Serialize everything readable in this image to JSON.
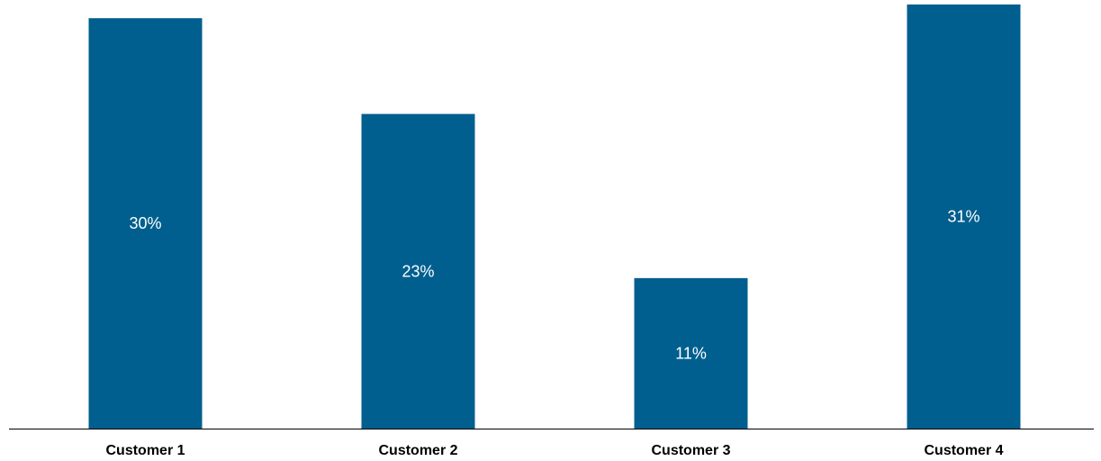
{
  "chart_data": {
    "type": "bar",
    "categories": [
      "Customer 1",
      "Customer 2",
      "Customer 3",
      "Customer 4"
    ],
    "values": [
      30,
      23,
      11,
      31
    ],
    "data_labels": [
      "30%",
      "23%",
      "11%",
      "31%"
    ],
    "ylim": [
      0,
      31
    ],
    "grid": false,
    "legend": "none",
    "bar_color": "#005F8E",
    "axis_color": "#000000"
  }
}
